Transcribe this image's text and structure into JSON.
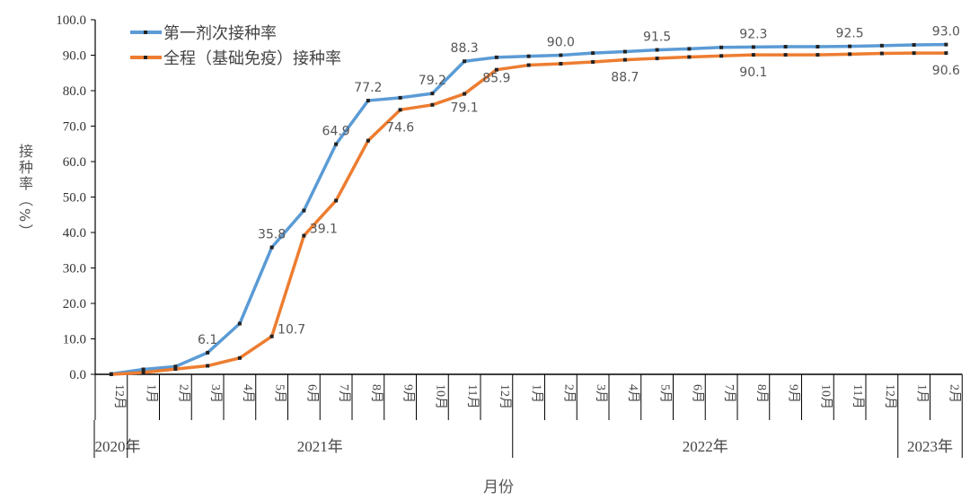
{
  "chart_data": {
    "type": "line",
    "title": "",
    "xlabel": "月份",
    "ylabel": "接种率（%）",
    "ylim": [
      0,
      100
    ],
    "yticks": [
      "0.0",
      "10.0",
      "20.0",
      "30.0",
      "40.0",
      "50.0",
      "60.0",
      "70.0",
      "80.0",
      "90.0",
      "100.0"
    ],
    "categories": [
      "12月",
      "1月",
      "2月",
      "3月",
      "4月",
      "5月",
      "6月",
      "7月",
      "8月",
      "9月",
      "10月",
      "11月",
      "12月",
      "1月",
      "2月",
      "3月",
      "4月",
      "5月",
      "6月",
      "7月",
      "8月",
      "9月",
      "10月",
      "11月",
      "12月",
      "1月",
      "2月"
    ],
    "year_groups": [
      {
        "label": "2020年",
        "count": 1
      },
      {
        "label": "2021年",
        "count": 12
      },
      {
        "label": "2022年",
        "count": 12
      },
      {
        "label": "2023年",
        "count": 2
      }
    ],
    "legend_position": "top-left",
    "series": [
      {
        "name": "第一剂次接种率",
        "color": "#5b9bd5",
        "values": [
          0.1,
          1.4,
          2.2,
          6.1,
          14.3,
          35.8,
          46.2,
          64.9,
          77.2,
          78.0,
          79.2,
          88.3,
          89.4,
          89.7,
          90.0,
          90.6,
          91.0,
          91.5,
          91.8,
          92.2,
          92.3,
          92.4,
          92.4,
          92.5,
          92.7,
          92.9,
          93.0
        ],
        "labeled_points": [
          3,
          5,
          7,
          8,
          10,
          11,
          14,
          17,
          20,
          23,
          26
        ]
      },
      {
        "name": "全程（基础免疫）接种率",
        "color": "#ed7d31",
        "values": [
          0.0,
          0.5,
          1.5,
          2.4,
          4.6,
          10.7,
          39.1,
          49.0,
          65.9,
          74.6,
          76.0,
          79.1,
          85.9,
          87.2,
          87.6,
          88.1,
          88.7,
          89.1,
          89.5,
          89.8,
          90.1,
          90.1,
          90.1,
          90.3,
          90.5,
          90.6,
          90.6
        ],
        "labeled_points": [
          5,
          6,
          9,
          11,
          12,
          16,
          20,
          26
        ]
      }
    ]
  }
}
